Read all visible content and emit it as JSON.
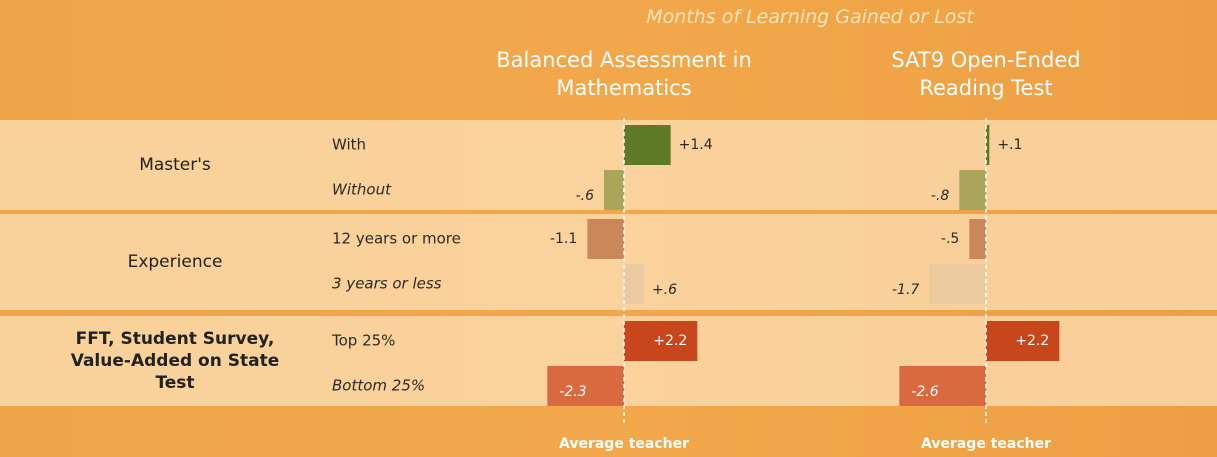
{
  "supertitle": "Months of Learning Gained or Lost",
  "rows": {
    "groups": [
      {
        "label": "Master's",
        "categories": [
          "With",
          "Without"
        ],
        "italic": [
          false,
          true
        ]
      },
      {
        "label": "Experience",
        "categories": [
          "12 years or more",
          "3 years or less"
        ],
        "italic": [
          false,
          true
        ]
      },
      {
        "label": "FFT, Student Survey, Value-Added on State Test",
        "categories": [
          "Top 25%",
          "Bottom 25%"
        ],
        "italic": [
          false,
          true
        ]
      }
    ]
  },
  "chart_data": [
    {
      "type": "bar",
      "orientation": "horizontal",
      "title": "Balanced Assessment in Mathematics",
      "reference_label": "Average teacher",
      "values": [
        1.4,
        -0.6,
        -1.1,
        0.6,
        2.2,
        -2.3
      ],
      "value_labels": [
        "+1.4",
        "-.6",
        "-1.1",
        "+.6",
        "+2.2",
        "-2.3"
      ],
      "colors": [
        "#5f7a27",
        "#a9a55a",
        "#c9875a",
        "#eccaa0",
        "#c8461b",
        "#d9693f"
      ],
      "xlim": [
        -3,
        3
      ]
    },
    {
      "type": "bar",
      "orientation": "horizontal",
      "title": "SAT9 Open-Ended Reading Test",
      "reference_label": "Average teacher",
      "values": [
        0.1,
        -0.8,
        -0.5,
        -1.7,
        2.2,
        -2.6
      ],
      "value_labels": [
        "+.1",
        "-.8",
        "-.5",
        "-1.7",
        "+2.2",
        "-2.6"
      ],
      "colors": [
        "#5f7a27",
        "#a9a55a",
        "#c9875a",
        "#eccaa0",
        "#c8461b",
        "#d9693f"
      ],
      "xlim": [
        -3,
        3
      ]
    }
  ]
}
